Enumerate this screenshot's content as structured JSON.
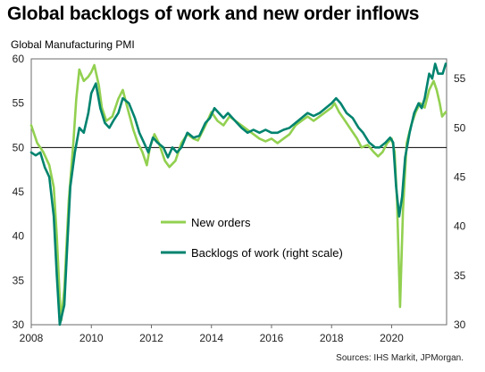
{
  "chart_data": {
    "type": "line",
    "title": "Global backlogs of work and new order inflows",
    "left_axis_label": "Global Manufacturing  PMI",
    "source": "Sources: IHS Markit, JPMorgan.",
    "reference_line": 50,
    "x_axis": {
      "range": [
        2008,
        2021.83
      ],
      "ticks": [
        "2008",
        "2010",
        "2012",
        "2014",
        "2016",
        "2018",
        "2020"
      ]
    },
    "y_left": {
      "range": [
        30,
        60
      ],
      "ticks": [
        30,
        35,
        40,
        45,
        50,
        55,
        60
      ]
    },
    "y_right": {
      "range": [
        30,
        57
      ],
      "ticks": [
        30,
        35,
        40,
        45,
        50,
        55
      ]
    },
    "grid": false,
    "legend_position": "center-bottom",
    "series": [
      {
        "name": "New orders",
        "color": "#92d050",
        "axis": "left",
        "points": [
          [
            2008.0,
            52.5
          ],
          [
            2008.2,
            50.5
          ],
          [
            2008.4,
            49.5
          ],
          [
            2008.6,
            48.0
          ],
          [
            2008.75,
            45.5
          ],
          [
            2008.85,
            40.0
          ],
          [
            2008.95,
            33.0
          ],
          [
            2009.0,
            30.5
          ],
          [
            2009.1,
            34.0
          ],
          [
            2009.25,
            44.0
          ],
          [
            2009.4,
            50.5
          ],
          [
            2009.5,
            55.5
          ],
          [
            2009.6,
            58.8
          ],
          [
            2009.75,
            57.5
          ],
          [
            2009.9,
            58.0
          ],
          [
            2010.0,
            58.5
          ],
          [
            2010.1,
            59.3
          ],
          [
            2010.25,
            57.0
          ],
          [
            2010.35,
            54.5
          ],
          [
            2010.5,
            53.0
          ],
          [
            2010.7,
            53.5
          ],
          [
            2010.9,
            55.5
          ],
          [
            2011.05,
            56.5
          ],
          [
            2011.2,
            54.5
          ],
          [
            2011.4,
            52.0
          ],
          [
            2011.55,
            50.5
          ],
          [
            2011.7,
            49.5
          ],
          [
            2011.85,
            48.0
          ],
          [
            2011.95,
            50.0
          ],
          [
            2012.1,
            51.5
          ],
          [
            2012.25,
            50.5
          ],
          [
            2012.45,
            48.5
          ],
          [
            2012.6,
            47.8
          ],
          [
            2012.8,
            48.5
          ],
          [
            2013.0,
            50.5
          ],
          [
            2013.2,
            51.5
          ],
          [
            2013.4,
            51.0
          ],
          [
            2013.55,
            50.8
          ],
          [
            2013.8,
            52.5
          ],
          [
            2014.0,
            54.0
          ],
          [
            2014.2,
            53.0
          ],
          [
            2014.4,
            52.5
          ],
          [
            2014.6,
            53.5
          ],
          [
            2014.8,
            53.0
          ],
          [
            2015.0,
            52.5
          ],
          [
            2015.2,
            52.0
          ],
          [
            2015.4,
            51.5
          ],
          [
            2015.6,
            51.0
          ],
          [
            2015.8,
            50.7
          ],
          [
            2016.0,
            51.0
          ],
          [
            2016.2,
            50.5
          ],
          [
            2016.4,
            51.0
          ],
          [
            2016.6,
            51.5
          ],
          [
            2016.8,
            52.5
          ],
          [
            2017.0,
            53.0
          ],
          [
            2017.2,
            53.5
          ],
          [
            2017.4,
            53.0
          ],
          [
            2017.6,
            53.5
          ],
          [
            2017.8,
            54.0
          ],
          [
            2018.0,
            54.5
          ],
          [
            2018.1,
            55.0
          ],
          [
            2018.25,
            54.0
          ],
          [
            2018.45,
            53.0
          ],
          [
            2018.65,
            52.0
          ],
          [
            2018.85,
            51.0
          ],
          [
            2019.0,
            50.0
          ],
          [
            2019.2,
            50.3
          ],
          [
            2019.4,
            49.5
          ],
          [
            2019.55,
            49.0
          ],
          [
            2019.7,
            49.5
          ],
          [
            2019.85,
            50.5
          ],
          [
            2020.0,
            51.0
          ],
          [
            2020.1,
            49.5
          ],
          [
            2020.18,
            44.0
          ],
          [
            2020.28,
            32.0
          ],
          [
            2020.38,
            43.0
          ],
          [
            2020.5,
            50.5
          ],
          [
            2020.65,
            52.5
          ],
          [
            2020.8,
            54.0
          ],
          [
            2020.95,
            55.0
          ],
          [
            2021.1,
            54.5
          ],
          [
            2021.25,
            56.5
          ],
          [
            2021.4,
            57.5
          ],
          [
            2021.5,
            56.5
          ],
          [
            2021.6,
            55.0
          ],
          [
            2021.68,
            53.5
          ],
          [
            2021.8,
            54.0
          ]
        ]
      },
      {
        "name": "Backlogs of work (right scale)",
        "color": "#00836f",
        "axis": "right",
        "points": [
          [
            2008.0,
            47.5
          ],
          [
            2008.15,
            47.2
          ],
          [
            2008.3,
            47.5
          ],
          [
            2008.45,
            46.0
          ],
          [
            2008.6,
            45.0
          ],
          [
            2008.75,
            41.0
          ],
          [
            2008.85,
            35.0
          ],
          [
            2008.95,
            30.0
          ],
          [
            2009.1,
            32.0
          ],
          [
            2009.2,
            38.0
          ],
          [
            2009.3,
            44.0
          ],
          [
            2009.45,
            47.5
          ],
          [
            2009.6,
            50.0
          ],
          [
            2009.75,
            49.5
          ],
          [
            2009.9,
            51.5
          ],
          [
            2010.0,
            53.5
          ],
          [
            2010.15,
            54.5
          ],
          [
            2010.3,
            52.0
          ],
          [
            2010.45,
            50.5
          ],
          [
            2010.6,
            50.0
          ],
          [
            2010.75,
            50.8
          ],
          [
            2010.9,
            51.5
          ],
          [
            2011.05,
            53.0
          ],
          [
            2011.25,
            52.5
          ],
          [
            2011.45,
            51.0
          ],
          [
            2011.6,
            49.5
          ],
          [
            2011.75,
            48.5
          ],
          [
            2011.9,
            47.5
          ],
          [
            2012.05,
            49.0
          ],
          [
            2012.2,
            48.5
          ],
          [
            2012.4,
            48.0
          ],
          [
            2012.55,
            47.0
          ],
          [
            2012.7,
            48.0
          ],
          [
            2012.85,
            47.5
          ],
          [
            2013.0,
            48.0
          ],
          [
            2013.2,
            49.5
          ],
          [
            2013.4,
            49.0
          ],
          [
            2013.6,
            49.2
          ],
          [
            2013.8,
            50.5
          ],
          [
            2013.95,
            51.0
          ],
          [
            2014.1,
            52.0
          ],
          [
            2014.25,
            51.5
          ],
          [
            2014.4,
            51.0
          ],
          [
            2014.55,
            51.5
          ],
          [
            2014.7,
            51.0
          ],
          [
            2014.85,
            50.5
          ],
          [
            2015.0,
            50.0
          ],
          [
            2015.2,
            49.5
          ],
          [
            2015.4,
            49.8
          ],
          [
            2015.6,
            49.5
          ],
          [
            2015.8,
            49.8
          ],
          [
            2016.0,
            49.5
          ],
          [
            2016.2,
            49.5
          ],
          [
            2016.4,
            49.8
          ],
          [
            2016.6,
            50.0
          ],
          [
            2016.8,
            50.5
          ],
          [
            2017.0,
            51.0
          ],
          [
            2017.2,
            51.5
          ],
          [
            2017.4,
            51.2
          ],
          [
            2017.6,
            51.5
          ],
          [
            2017.8,
            52.0
          ],
          [
            2018.0,
            52.5
          ],
          [
            2018.15,
            53.0
          ],
          [
            2018.3,
            52.5
          ],
          [
            2018.5,
            51.5
          ],
          [
            2018.7,
            51.0
          ],
          [
            2018.9,
            50.0
          ],
          [
            2019.05,
            49.5
          ],
          [
            2019.25,
            48.5
          ],
          [
            2019.45,
            48.0
          ],
          [
            2019.6,
            48.0
          ],
          [
            2019.8,
            48.5
          ],
          [
            2019.95,
            49.0
          ],
          [
            2020.05,
            48.5
          ],
          [
            2020.15,
            44.0
          ],
          [
            2020.25,
            41.0
          ],
          [
            2020.35,
            43.0
          ],
          [
            2020.45,
            47.0
          ],
          [
            2020.6,
            49.5
          ],
          [
            2020.75,
            51.5
          ],
          [
            2020.9,
            52.5
          ],
          [
            2021.0,
            52.0
          ],
          [
            2021.1,
            53.0
          ],
          [
            2021.25,
            55.5
          ],
          [
            2021.35,
            55.0
          ],
          [
            2021.45,
            56.5
          ],
          [
            2021.55,
            55.5
          ],
          [
            2021.7,
            55.5
          ],
          [
            2021.8,
            56.5
          ]
        ]
      }
    ]
  }
}
